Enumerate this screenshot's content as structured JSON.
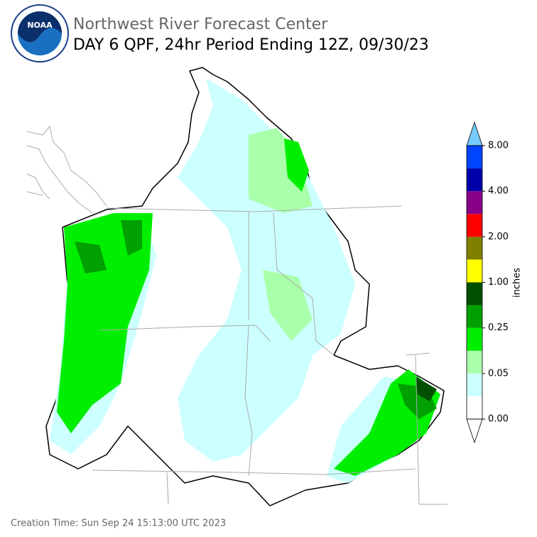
{
  "header": {
    "title": "Northwest River Forecast Center",
    "subtitle": "DAY 6 QPF, 24hr Period Ending 12Z, 09/30/23",
    "logo_text": "NOAA"
  },
  "colorbar": {
    "label": "inches",
    "colors": [
      "#ffffff",
      "#ccffff",
      "#aaffaa",
      "#00ee00",
      "#00a000",
      "#005000",
      "#ffff00",
      "#808000",
      "#ff0000",
      "#880088",
      "#0000aa",
      "#0044ff"
    ],
    "over_color": "#77ccff",
    "under_color": "#ffffff",
    "ticks": [
      {
        "value": 0,
        "label": "0.00"
      },
      {
        "value": 0.05,
        "label": "0.05"
      },
      {
        "value": 0.25,
        "label": "0.25"
      },
      {
        "value": 1,
        "label": "1.00"
      },
      {
        "value": 2,
        "label": "2.00"
      },
      {
        "value": 4,
        "label": "4.00"
      },
      {
        "value": 8,
        "label": "8.00"
      }
    ]
  },
  "footer": {
    "creation_time": "Creation Time: Sun Sep 24 15:13:00 UTC 2023"
  }
}
